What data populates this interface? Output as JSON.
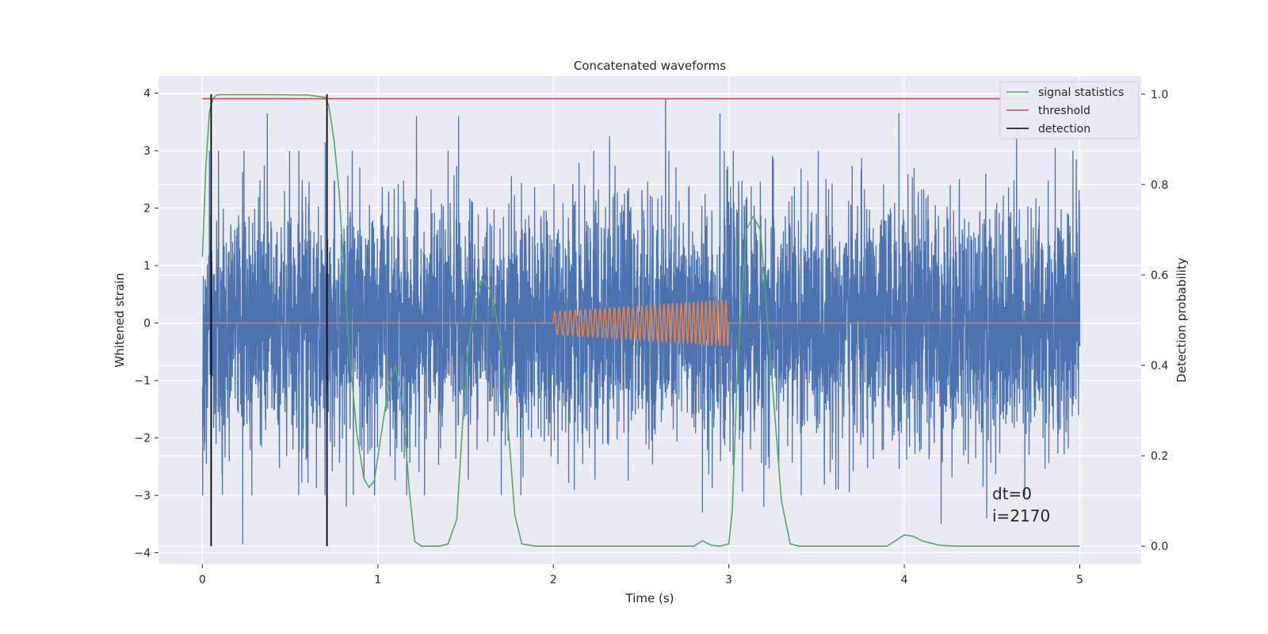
{
  "chart_data": {
    "type": "line",
    "title": "Concatenated waveforms",
    "xlabel": "Time (s)",
    "ylabel": "Whitened strain",
    "y2label": "Detection probability",
    "xlim": [
      -0.25,
      5.35
    ],
    "ylim": [
      -4.2,
      4.3
    ],
    "y2lim": [
      -0.04,
      1.04
    ],
    "xticks": [
      0,
      1,
      2,
      3,
      4,
      5
    ],
    "yticks": [
      -4,
      -3,
      -2,
      -1,
      0,
      1,
      2,
      3,
      4
    ],
    "y2ticks": [
      0.0,
      0.2,
      0.4,
      0.6,
      0.8,
      1.0
    ],
    "y2ticklabels": [
      "0.0",
      "0.2",
      "0.4",
      "0.6",
      "0.8",
      "1.0"
    ],
    "grid": true,
    "legend_position": "top-right",
    "legend": [
      "signal statistics",
      "threshold",
      "detection"
    ],
    "annotation": [
      "dt=0",
      "i=2170"
    ],
    "colors": {
      "background": "#eaeaf2",
      "grid": "#ffffff",
      "strain": "#4c72b0",
      "template": "#dd8452",
      "signal_statistics": "#55a868",
      "threshold": "#c44e52",
      "detection": "#000000"
    },
    "series": [
      {
        "name": "signal statistics",
        "axis": "right",
        "x": [
          0.0,
          0.02,
          0.04,
          0.06,
          0.08,
          0.1,
          0.2,
          0.4,
          0.6,
          0.7,
          0.72,
          0.75,
          0.78,
          0.8,
          0.84,
          0.88,
          0.92,
          0.95,
          0.98,
          1.02,
          1.06,
          1.1,
          1.14,
          1.18,
          1.21,
          1.25,
          1.3,
          1.35,
          1.4,
          1.45,
          1.5,
          1.55,
          1.6,
          1.65,
          1.7,
          1.74,
          1.78,
          1.82,
          1.9,
          2.0,
          2.5,
          2.8,
          2.85,
          2.9,
          2.95,
          3.0,
          3.02,
          3.05,
          3.1,
          3.14,
          3.18,
          3.22,
          3.26,
          3.3,
          3.35,
          3.4,
          3.6,
          3.9,
          3.95,
          4.0,
          4.05,
          4.1,
          4.15,
          4.2,
          4.3,
          4.6,
          5.0
        ],
        "y": [
          0.64,
          0.84,
          0.96,
          0.99,
          0.998,
          0.999,
          0.999,
          0.999,
          0.998,
          0.993,
          0.975,
          0.9,
          0.78,
          0.65,
          0.42,
          0.25,
          0.15,
          0.13,
          0.145,
          0.25,
          0.35,
          0.4,
          0.32,
          0.12,
          0.01,
          0.0,
          0.0,
          0.0,
          0.005,
          0.06,
          0.38,
          0.55,
          0.59,
          0.56,
          0.45,
          0.28,
          0.07,
          0.005,
          0.0,
          0.0,
          0.0,
          0.0,
          0.012,
          0.002,
          0.0,
          0.005,
          0.08,
          0.4,
          0.7,
          0.73,
          0.7,
          0.5,
          0.3,
          0.1,
          0.005,
          0.0,
          0.0,
          0.0,
          0.012,
          0.025,
          0.022,
          0.012,
          0.007,
          0.002,
          0.0,
          0.0,
          0.0
        ]
      },
      {
        "name": "threshold",
        "axis": "right",
        "x": [
          0.0,
          5.0
        ],
        "y": [
          0.99,
          0.99
        ]
      },
      {
        "name": "detection",
        "axis": "right",
        "x": [
          0.05,
          0.71
        ],
        "y_range": [
          0.0,
          1.0
        ]
      },
      {
        "axis": "left",
        "description_free": true,
        "x_range": [
          0.0,
          5.0
        ],
        "amplitude_typical": 2.2,
        "peaks": [
          {
            "x": 0.05,
            "y": -2.85
          },
          {
            "x": 0.23,
            "y": -3.85
          },
          {
            "x": 0.37,
            "y": 3.65
          },
          {
            "x": 0.55,
            "y": 3.0
          },
          {
            "x": 0.7,
            "y": 3.15
          },
          {
            "x": 0.82,
            "y": -3.2
          },
          {
            "x": 1.22,
            "y": 3.6
          },
          {
            "x": 1.46,
            "y": 3.6
          },
          {
            "x": 2.32,
            "y": 3.25
          },
          {
            "x": 2.64,
            "y": 3.9
          },
          {
            "x": 2.85,
            "y": -3.3
          },
          {
            "x": 2.95,
            "y": 3.65
          },
          {
            "x": 3.2,
            "y": -3.2
          },
          {
            "x": 3.97,
            "y": 3.65
          },
          {
            "x": 4.21,
            "y": -3.5
          },
          {
            "x": 4.47,
            "y": -3.4
          },
          {
            "x": 4.64,
            "y": 3.6
          },
          {
            "x": 4.86,
            "y": 3.05
          },
          {
            "x": 4.98,
            "y": 2.85
          }
        ]
      },
      {
        "axis": "left",
        "x_range": [
          2.0,
          3.0
        ],
        "amplitude_start": 0.2,
        "amplitude_end": 0.4,
        "cycles": 39
      }
    ]
  }
}
